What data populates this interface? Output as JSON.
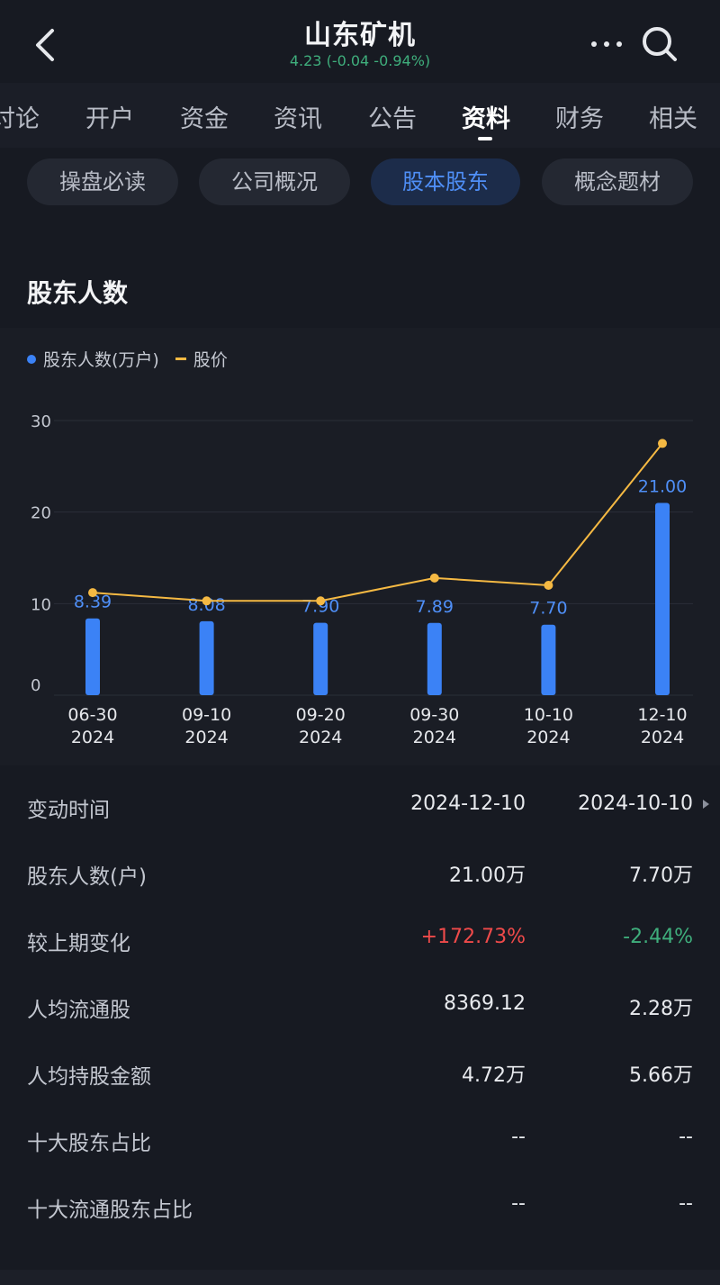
{
  "header": {
    "title": "山东矿机",
    "quote": "4.23 (-0.04 -0.94%)",
    "icons": [
      "back-arrow-icon",
      "more-icon",
      "search-icon"
    ]
  },
  "tabs": [
    "讨论",
    "开户",
    "资金",
    "资讯",
    "公告",
    "资料",
    "财务",
    "相关"
  ],
  "active_tab": "资料",
  "chips": [
    "操盘必读",
    "公司概况",
    "股本股东",
    "概念题材"
  ],
  "active_chip": "股本股东",
  "section": {
    "title": "股东人数"
  },
  "legend": {
    "series1": "股东人数(万户)",
    "series2": "股价"
  },
  "colors": {
    "bar": "#3b82f6",
    "line": "#f5b943",
    "up": "#ef4a4a",
    "down": "#3fae7c"
  },
  "chart_data": {
    "type": "bar",
    "categories": [
      "06-30\n2024",
      "09-10\n2024",
      "09-20\n2024",
      "09-30\n2024",
      "10-10\n2024",
      "12-10\n2024"
    ],
    "series": [
      {
        "name": "股东人数(万户)",
        "type": "bar",
        "values": [
          8.39,
          8.08,
          7.9,
          7.89,
          7.7,
          21.0
        ]
      },
      {
        "name": "股价",
        "type": "line",
        "values": [
          11.2,
          10.3,
          10.3,
          12.8,
          12.0,
          27.5
        ]
      }
    ],
    "data_labels": [
      "8.39",
      "8.08",
      "7.90",
      "7.89",
      "7.70",
      "21.00"
    ],
    "yticks": [
      "0",
      "10",
      "20",
      "30"
    ],
    "ylim": [
      0,
      30
    ],
    "grid": true,
    "legend_position": "top-left"
  },
  "table": {
    "rows": [
      {
        "label": "变动时间",
        "v1": "2024-12-10",
        "v2": "2024-10-10"
      },
      {
        "label": "股东人数(户)",
        "v1": "21.00万",
        "v2": "7.70万"
      },
      {
        "label": "较上期变化",
        "v1": "+172.73%",
        "v2": "-2.44%"
      },
      {
        "label": "人均流通股",
        "v1": "8369.12",
        "v2": "2.28万"
      },
      {
        "label": "人均持股金额",
        "v1": "4.72万",
        "v2": "5.66万"
      },
      {
        "label": "十大股东占比",
        "v1": "--",
        "v2": "--"
      },
      {
        "label": "十大流通股东占比",
        "v1": "--",
        "v2": "--"
      }
    ]
  }
}
